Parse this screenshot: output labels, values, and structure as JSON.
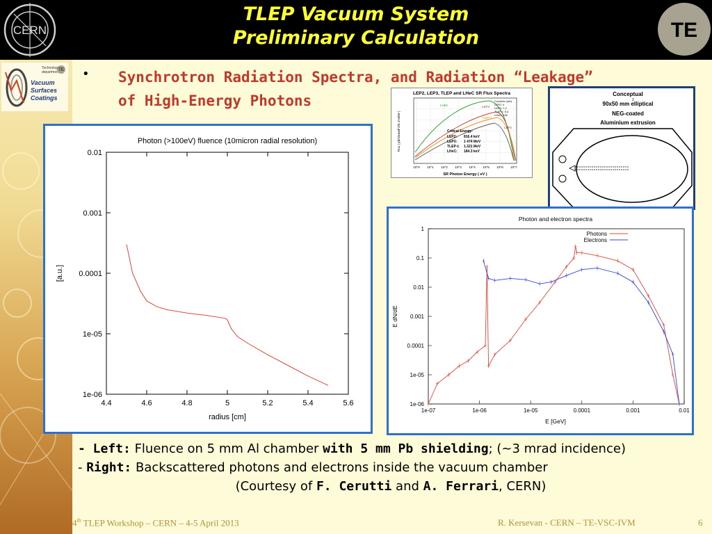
{
  "header": {
    "title_line1": "TLEP Vacuum System",
    "title_line2": "Preliminary Calculation",
    "cern_logo_text": "CERN",
    "te_logo_text": "TE"
  },
  "vsc_logo": {
    "line1": "Technology",
    "line2": "department",
    "badge": "TE",
    "word1": "Vacuum",
    "word2": "Surfaces",
    "word3": "Coatings"
  },
  "heading": {
    "bullet": "•",
    "line1": "Synchrotron Radiation Spectra, and Radiation “Leakage”",
    "line2": "of High-Energy Photons"
  },
  "chart_data": [
    {
      "type": "line",
      "title": "Photon (>100eV) fluence (10micron radial resolution)",
      "xlabel": "radius [cm]",
      "ylabel": "[a.u.]",
      "xlim": [
        4.4,
        5.6
      ],
      "ylim": [
        1e-06,
        0.01
      ],
      "yscale": "log",
      "x_ticks": [
        "4.4",
        "4.6",
        "4.8",
        "5",
        "5.2",
        "5.4",
        "5.6"
      ],
      "y_ticks": [
        "0.01",
        "0.001",
        "0.0001",
        "1e-05",
        "1e-06"
      ],
      "series": [
        {
          "x": [
            4.5,
            4.53,
            4.57,
            4.6,
            4.65,
            4.7,
            4.8,
            4.9,
            4.99,
            5.0,
            5.02,
            5.05,
            5.1,
            5.2,
            5.3,
            5.4,
            5.5
          ],
          "y": [
            0.0003,
            0.0001,
            5e-05,
            3.5e-05,
            2.8e-05,
            2.5e-05,
            2.2e-05,
            2e-05,
            1.8e-05,
            1.7e-05,
            1.2e-05,
            9e-06,
            7e-06,
            4.5e-06,
            3e-06,
            2e-06,
            1.4e-06
          ]
        }
      ]
    },
    {
      "type": "line",
      "title": "Photon and electron spectra",
      "xlabel": "E [GeV]",
      "ylabel": "E dN/dE",
      "xscale": "log",
      "yscale": "log",
      "xlim": [
        1e-07,
        0.01
      ],
      "ylim": [
        1e-06,
        1
      ],
      "x_ticks": [
        "1e-07",
        "1e-06",
        "1e-05",
        "0.0001",
        "0.001",
        "0.01"
      ],
      "y_ticks": [
        "1",
        "0.1",
        "0.01",
        "0.001",
        "0.0001",
        "1e-05",
        "1e-06"
      ],
      "legend": "top-right",
      "series": [
        {
          "name": "Photons",
          "x": [
            1e-07,
            1.5e-07,
            2.5e-07,
            4e-07,
            6e-07,
            9e-07,
            1.3e-06,
            1.4e-06,
            1.5e-06,
            2e-06,
            4e-06,
            8e-06,
            1.5e-05,
            3e-05,
            5e-05,
            7e-05,
            7.5e-05,
            8e-05,
            0.0001,
            0.0002,
            0.0005,
            0.001,
            0.002,
            0.004,
            0.006,
            0.008
          ],
          "y": [
            1e-06,
            5e-06,
            1e-05,
            2e-05,
            3e-05,
            6e-05,
            0.0001,
            0.05,
            2e-05,
            5e-05,
            0.00015,
            0.0008,
            0.003,
            0.015,
            0.05,
            0.1,
            0.25,
            0.15,
            0.15,
            0.12,
            0.08,
            0.04,
            0.005,
            0.0005,
            1e-05,
            1e-06
          ]
        },
        {
          "name": "Electrons",
          "x": [
            1.2e-06,
            1.5e-06,
            2e-06,
            4e-06,
            8e-06,
            1.5e-05,
            2.5e-05,
            5e-05,
            0.0001,
            0.0002,
            0.0005,
            0.001,
            0.002,
            0.004,
            0.006,
            0.008
          ],
          "y": [
            0.08,
            0.02,
            0.017,
            0.02,
            0.018,
            0.013,
            0.015,
            0.025,
            0.04,
            0.045,
            0.03,
            0.015,
            0.003,
            0.0003,
            5e-05,
            1e-06
          ]
        }
      ]
    },
    {
      "type": "line",
      "title": "LEP2, LEP3, TLEP and LHeC SR Flux Spectra",
      "xlabel": "SR Photon Energy ( eV )",
      "ylabel": "Flux ( ph/s/mrad^2/0.1%BW )",
      "xscale": "log",
      "yscale": "log",
      "x_ticks": [
        "10^0",
        "10^1",
        "10^2",
        "10^3",
        "10^4",
        "10^5",
        "10^6",
        "10^7"
      ],
      "series_labels": [
        "LHeC",
        "LEP3",
        "TLEP-t",
        "LEP2"
      ],
      "currents_title": "Currents (mA)",
      "currents": [
        "LEP2:   4",
        "LEP3:   7.2",
        "TLEP-t: 5.4",
        "LHeC:  100"
      ],
      "critical_title": "Critical Energy:",
      "critical": [
        {
          "name": "LEP2:",
          "value": "816.4 keV"
        },
        {
          "name": "LEP3:",
          "value": "1 474 MeV"
        },
        {
          "name": "TLEP-t:",
          "value": "1.321 MeV"
        },
        {
          "name": "LHeC:",
          "value": "184.3 keV"
        }
      ]
    }
  ],
  "conceptual": {
    "line1": "Conceptual",
    "line2": "90x50 mm   elliptical",
    "superscript": "2",
    "line3": "NEG-coated",
    "line4": "Aluminium extrusion"
  },
  "caption": {
    "left_label": "- Left:",
    "left_text_a": " Fluence on 5 mm Al chamber ",
    "left_bold": "with 5 mm Pb shielding",
    "left_text_b": "; (~3 mrad incidence)",
    "right_dash": "- ",
    "right_label": "Right:",
    "right_text": " Backscattered photons and electrons inside the vacuum chamber",
    "courtesy_a": "(Courtesy of ",
    "name1": "F. Cerutti",
    "courtesy_b": " and ",
    "name2": "A. Ferrari",
    "courtesy_c": ", CERN)"
  },
  "footer": {
    "left_pre": "4",
    "left_sup": "th",
    "left_post": " TLEP Workshop – CERN – 4-5 April 2013",
    "right": "R. Kersevan  - CERN – TE-VSC-IVM",
    "page": "6"
  },
  "colors": {
    "title": "#ffff33",
    "heading": "#c0392b",
    "panel_border": "#2e6fd0",
    "photons": "#e8433a",
    "electrons": "#3344dd",
    "fluence": "#e8433a"
  }
}
